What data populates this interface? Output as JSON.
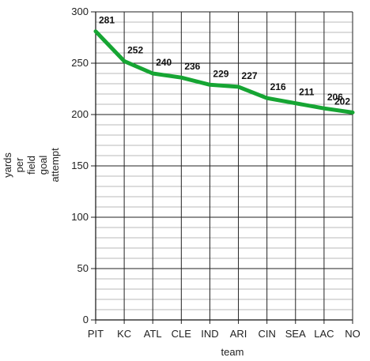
{
  "chart_data": {
    "type": "line",
    "categories": [
      "PIT",
      "KC",
      "ATL",
      "CLE",
      "IND",
      "ARI",
      "CIN",
      "SEA",
      "LAC",
      "NO"
    ],
    "series": [
      {
        "values": [
          281,
          252,
          240,
          236,
          229,
          227,
          216,
          211,
          206,
          202
        ]
      }
    ],
    "xlabel": "team",
    "ylabel_lines": [
      "yards",
      "per",
      "field",
      "goal",
      "attempt"
    ],
    "ylim": [
      0,
      300
    ],
    "yticks": [
      0,
      50,
      100,
      150,
      200,
      250,
      300
    ],
    "minor_grid_step": 10,
    "grid": true,
    "legend": "none",
    "line_color": "#16a533",
    "major_grid_color": "#222222",
    "minor_grid_color": "#b8b8b8"
  }
}
